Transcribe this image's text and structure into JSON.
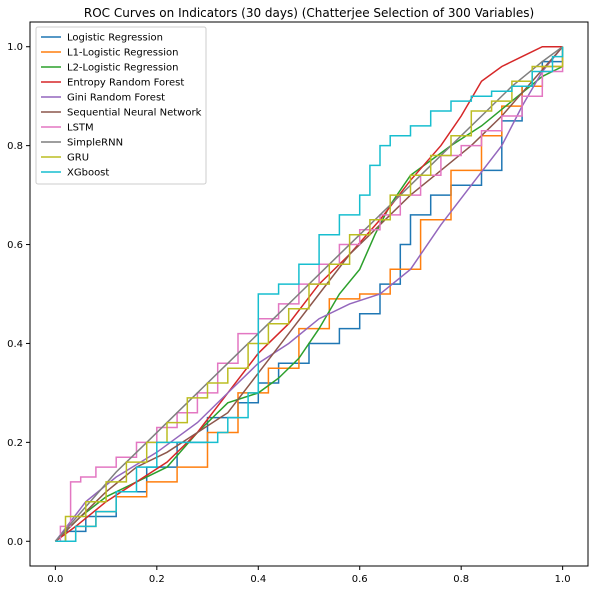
{
  "chart_data": {
    "type": "line",
    "title": "ROC Curves on Indicators (30 days) (Chatterjee Selection of 300 Variables)",
    "xlabel": "",
    "ylabel": "",
    "xlim": [
      -0.05,
      1.05
    ],
    "ylim": [
      -0.05,
      1.05
    ],
    "xticks": [
      0.0,
      0.2,
      0.4,
      0.6,
      0.8,
      1.0
    ],
    "yticks": [
      0.0,
      0.2,
      0.4,
      0.6,
      0.8,
      1.0
    ],
    "xtick_labels": [
      "0.0",
      "0.2",
      "0.4",
      "0.6",
      "0.8",
      "1.0"
    ],
    "ytick_labels": [
      "0.0",
      "0.2",
      "0.4",
      "0.6",
      "0.8",
      "1.0"
    ],
    "grid": false,
    "legend_position": "upper-left",
    "series": [
      {
        "name": "Logistic Regression",
        "color": "#1f77b4",
        "step": true,
        "x": [
          0.0,
          0.02,
          0.06,
          0.12,
          0.18,
          0.24,
          0.3,
          0.36,
          0.4,
          0.44,
          0.5,
          0.56,
          0.6,
          0.64,
          0.68,
          0.7,
          0.74,
          0.78,
          0.84,
          0.88,
          0.92,
          0.96,
          1.0
        ],
        "y": [
          0.0,
          0.02,
          0.05,
          0.1,
          0.15,
          0.2,
          0.25,
          0.28,
          0.32,
          0.36,
          0.4,
          0.43,
          0.46,
          0.52,
          0.6,
          0.66,
          0.7,
          0.72,
          0.75,
          0.85,
          0.92,
          0.97,
          1.0
        ]
      },
      {
        "name": "L1-Logistic Regression",
        "color": "#ff7f0e",
        "step": true,
        "x": [
          0.0,
          0.04,
          0.08,
          0.12,
          0.18,
          0.24,
          0.3,
          0.36,
          0.42,
          0.48,
          0.54,
          0.6,
          0.66,
          0.72,
          0.78,
          0.84,
          0.88,
          0.92,
          0.96,
          1.0
        ],
        "y": [
          0.0,
          0.03,
          0.06,
          0.09,
          0.12,
          0.15,
          0.22,
          0.3,
          0.35,
          0.43,
          0.49,
          0.5,
          0.55,
          0.65,
          0.75,
          0.82,
          0.88,
          0.92,
          0.96,
          1.0
        ]
      },
      {
        "name": "L2-Logistic Regression",
        "color": "#2ca02c",
        "step": false,
        "x": [
          0.0,
          0.05,
          0.1,
          0.16,
          0.22,
          0.28,
          0.34,
          0.4,
          0.44,
          0.48,
          0.52,
          0.56,
          0.6,
          0.63,
          0.66,
          0.7,
          0.74,
          0.78,
          0.84,
          0.9,
          0.96,
          1.0
        ],
        "y": [
          0.0,
          0.05,
          0.09,
          0.12,
          0.15,
          0.22,
          0.28,
          0.3,
          0.33,
          0.37,
          0.43,
          0.5,
          0.55,
          0.62,
          0.68,
          0.74,
          0.77,
          0.8,
          0.84,
          0.89,
          0.94,
          0.96
        ]
      },
      {
        "name": "Entropy Random Forest",
        "color": "#d62728",
        "step": false,
        "x": [
          0.0,
          0.04,
          0.1,
          0.16,
          0.22,
          0.28,
          0.34,
          0.4,
          0.46,
          0.52,
          0.58,
          0.64,
          0.7,
          0.76,
          0.8,
          0.84,
          0.88,
          0.92,
          0.96,
          1.0
        ],
        "y": [
          0.0,
          0.03,
          0.08,
          0.12,
          0.16,
          0.22,
          0.3,
          0.38,
          0.44,
          0.52,
          0.58,
          0.65,
          0.73,
          0.8,
          0.86,
          0.93,
          0.96,
          0.98,
          1.0,
          1.0
        ]
      },
      {
        "name": "Gini Random Forest",
        "color": "#9467bd",
        "step": false,
        "x": [
          0.0,
          0.06,
          0.12,
          0.2,
          0.28,
          0.34,
          0.4,
          0.46,
          0.52,
          0.58,
          0.64,
          0.7,
          0.76,
          0.82,
          0.88,
          0.92,
          0.96,
          1.0
        ],
        "y": [
          0.0,
          0.08,
          0.13,
          0.18,
          0.24,
          0.3,
          0.36,
          0.4,
          0.45,
          0.48,
          0.5,
          0.55,
          0.64,
          0.72,
          0.8,
          0.88,
          0.95,
          1.0
        ]
      },
      {
        "name": "Sequential Neural Network",
        "color": "#8c564b",
        "step": false,
        "x": [
          0.0,
          0.05,
          0.1,
          0.16,
          0.22,
          0.28,
          0.34,
          0.4,
          0.46,
          0.52,
          0.58,
          0.64,
          0.7,
          0.76,
          0.82,
          0.88,
          0.94,
          1.0
        ],
        "y": [
          0.0,
          0.05,
          0.1,
          0.15,
          0.18,
          0.22,
          0.26,
          0.34,
          0.42,
          0.5,
          0.58,
          0.64,
          0.7,
          0.75,
          0.8,
          0.86,
          0.93,
          1.0
        ]
      },
      {
        "name": "LSTM",
        "color": "#e377c2",
        "step": true,
        "x": [
          0.0,
          0.01,
          0.03,
          0.05,
          0.08,
          0.12,
          0.16,
          0.2,
          0.24,
          0.28,
          0.32,
          0.36,
          0.4,
          0.44,
          0.48,
          0.52,
          0.56,
          0.6,
          0.64,
          0.68,
          0.72,
          0.76,
          0.8,
          0.84,
          0.88,
          0.92,
          0.96,
          1.0
        ],
        "y": [
          0.0,
          0.03,
          0.12,
          0.13,
          0.15,
          0.17,
          0.2,
          0.23,
          0.26,
          0.3,
          0.36,
          0.42,
          0.45,
          0.48,
          0.52,
          0.56,
          0.6,
          0.63,
          0.66,
          0.7,
          0.74,
          0.78,
          0.8,
          0.83,
          0.86,
          0.9,
          0.95,
          1.0
        ]
      },
      {
        "name": "SimpleRNN",
        "color": "#7f7f7f",
        "step": false,
        "x": [
          0.0,
          0.06,
          0.12,
          0.18,
          0.24,
          0.3,
          0.36,
          0.42,
          0.48,
          0.54,
          0.6,
          0.66,
          0.72,
          0.78,
          0.84,
          0.9,
          0.96,
          1.0
        ],
        "y": [
          0.0,
          0.07,
          0.14,
          0.2,
          0.26,
          0.32,
          0.38,
          0.44,
          0.5,
          0.56,
          0.62,
          0.68,
          0.74,
          0.8,
          0.86,
          0.92,
          0.97,
          1.0
        ]
      },
      {
        "name": "GRU",
        "color": "#bcbd22",
        "step": true,
        "x": [
          0.0,
          0.02,
          0.06,
          0.1,
          0.14,
          0.18,
          0.22,
          0.26,
          0.3,
          0.34,
          0.38,
          0.42,
          0.46,
          0.5,
          0.54,
          0.58,
          0.62,
          0.66,
          0.7,
          0.74,
          0.78,
          0.82,
          0.86,
          0.9,
          0.94,
          1.0
        ],
        "y": [
          0.0,
          0.05,
          0.08,
          0.12,
          0.16,
          0.2,
          0.24,
          0.29,
          0.32,
          0.35,
          0.4,
          0.44,
          0.47,
          0.52,
          0.56,
          0.62,
          0.65,
          0.7,
          0.74,
          0.78,
          0.82,
          0.87,
          0.89,
          0.93,
          0.96,
          1.0
        ]
      },
      {
        "name": "XGboost",
        "color": "#17becf",
        "step": true,
        "x": [
          0.0,
          0.04,
          0.08,
          0.12,
          0.16,
          0.2,
          0.24,
          0.28,
          0.32,
          0.34,
          0.38,
          0.4,
          0.44,
          0.48,
          0.52,
          0.56,
          0.6,
          0.62,
          0.64,
          0.66,
          0.7,
          0.74,
          0.78,
          0.82,
          0.86,
          0.9,
          0.94,
          0.98,
          1.0
        ],
        "y": [
          0.0,
          0.03,
          0.06,
          0.1,
          0.15,
          0.2,
          0.2,
          0.2,
          0.22,
          0.25,
          0.3,
          0.5,
          0.52,
          0.56,
          0.62,
          0.66,
          0.7,
          0.76,
          0.8,
          0.82,
          0.84,
          0.87,
          0.89,
          0.9,
          0.91,
          0.92,
          0.95,
          0.98,
          1.0
        ]
      }
    ]
  }
}
